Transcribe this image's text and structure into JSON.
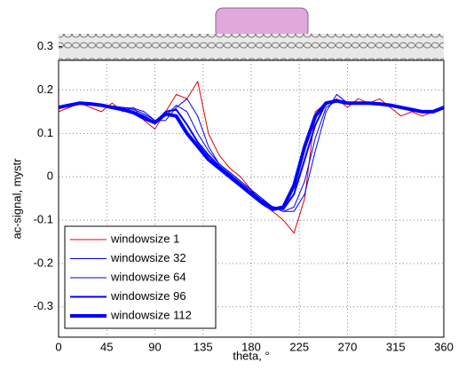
{
  "chart_data": {
    "type": "line",
    "xlabel": "theta, °",
    "ylabel": "ac-signal, mystr",
    "x": [
      0,
      10,
      20,
      30,
      40,
      50,
      60,
      70,
      80,
      90,
      100,
      110,
      120,
      130,
      140,
      150,
      160,
      170,
      180,
      190,
      200,
      210,
      220,
      230,
      240,
      250,
      260,
      270,
      280,
      290,
      300,
      310,
      320,
      330,
      340,
      350,
      360
    ],
    "series": [
      {
        "name": "windowsize 1",
        "color": "#e00000",
        "width": 1,
        "values": [
          0.15,
          0.16,
          0.17,
          0.16,
          0.15,
          0.17,
          0.15,
          0.16,
          0.13,
          0.11,
          0.15,
          0.19,
          0.18,
          0.22,
          0.1,
          0.05,
          0.02,
          0.0,
          -0.03,
          -0.06,
          -0.08,
          -0.1,
          -0.13,
          -0.05,
          0.15,
          0.17,
          0.18,
          0.16,
          0.18,
          0.17,
          0.18,
          0.16,
          0.14,
          0.15,
          0.14,
          0.15,
          0.16
        ]
      },
      {
        "name": "windowsize 32",
        "color": "#0000ff",
        "width": 1,
        "values": [
          0.16,
          0.165,
          0.17,
          0.168,
          0.165,
          0.163,
          0.16,
          0.158,
          0.15,
          0.13,
          0.13,
          0.16,
          0.18,
          0.14,
          0.07,
          0.03,
          0.01,
          -0.01,
          -0.03,
          -0.05,
          -0.07,
          -0.08,
          -0.08,
          -0.04,
          0.06,
          0.15,
          0.19,
          0.17,
          0.168,
          0.17,
          0.17,
          0.165,
          0.16,
          0.155,
          0.15,
          0.15,
          0.16
        ]
      },
      {
        "name": "windowsize 64",
        "color": "#0000ee",
        "width": 1,
        "values": [
          0.16,
          0.165,
          0.17,
          0.168,
          0.165,
          0.163,
          0.16,
          0.155,
          0.145,
          0.13,
          0.14,
          0.165,
          0.15,
          0.1,
          0.06,
          0.03,
          0.01,
          -0.01,
          -0.03,
          -0.05,
          -0.07,
          -0.08,
          -0.07,
          -0.01,
          0.09,
          0.16,
          0.175,
          0.17,
          0.168,
          0.17,
          0.17,
          0.165,
          0.16,
          0.155,
          0.15,
          0.15,
          0.16
        ]
      },
      {
        "name": "windowsize 96",
        "color": "#0000ff",
        "width": 2,
        "values": [
          0.16,
          0.165,
          0.17,
          0.168,
          0.165,
          0.16,
          0.155,
          0.15,
          0.14,
          0.125,
          0.15,
          0.155,
          0.12,
          0.08,
          0.05,
          0.025,
          0.005,
          -0.015,
          -0.035,
          -0.055,
          -0.07,
          -0.075,
          -0.04,
          0.04,
          0.12,
          0.17,
          0.175,
          0.17,
          0.17,
          0.17,
          0.168,
          0.165,
          0.16,
          0.155,
          0.15,
          0.15,
          0.16
        ]
      },
      {
        "name": "windowsize 112",
        "color": "#0000ff",
        "width": 4,
        "values": [
          0.16,
          0.165,
          0.17,
          0.168,
          0.165,
          0.16,
          0.155,
          0.148,
          0.135,
          0.125,
          0.145,
          0.14,
          0.1,
          0.07,
          0.04,
          0.02,
          0.0,
          -0.02,
          -0.04,
          -0.06,
          -0.075,
          -0.07,
          -0.02,
          0.07,
          0.14,
          0.17,
          0.175,
          0.17,
          0.17,
          0.17,
          0.168,
          0.165,
          0.16,
          0.155,
          0.15,
          0.15,
          0.16
        ]
      }
    ],
    "xlim": [
      0,
      360
    ],
    "xticks": [
      0,
      45,
      90,
      135,
      180,
      225,
      270,
      315,
      360
    ],
    "ylim": [
      -0.37,
      0.33
    ],
    "yticks": [
      0.3,
      0.2,
      0.1,
      0,
      -0.1,
      -0.2,
      -0.3
    ],
    "grid": true,
    "legend": "lower left"
  }
}
